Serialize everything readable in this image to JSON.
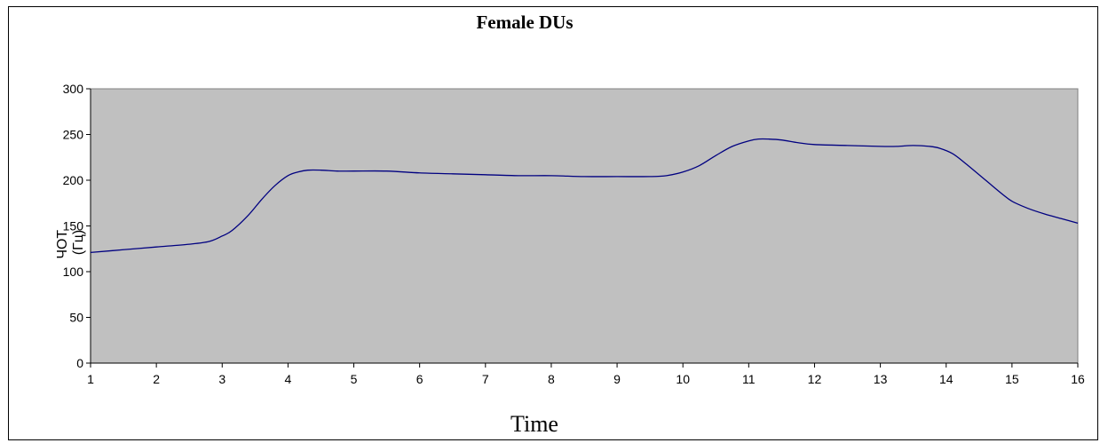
{
  "chart_data": {
    "type": "line",
    "title": "Female DUs",
    "xlabel": "Time",
    "ylabel_lines": [
      "ЧОТ",
      "(Гц)"
    ],
    "xlim": [
      1,
      16
    ],
    "ylim": [
      0,
      300
    ],
    "x_ticks": [
      1,
      2,
      3,
      4,
      5,
      6,
      7,
      8,
      9,
      10,
      11,
      12,
      13,
      14,
      15,
      16
    ],
    "y_ticks": [
      0,
      50,
      100,
      150,
      200,
      250,
      300
    ],
    "grid": false,
    "plot_background": "#c0c0c0",
    "series": [
      {
        "color": "#000080",
        "x": [
          1,
          1.5,
          2,
          2.5,
          2.8,
          3,
          3.15,
          3.4,
          3.6,
          3.8,
          4,
          4.15,
          4.3,
          4.5,
          4.75,
          5,
          5.5,
          6,
          6.5,
          7,
          7.5,
          8,
          8.5,
          9,
          9.5,
          9.75,
          10,
          10.25,
          10.5,
          10.75,
          11,
          11.15,
          11.3,
          11.5,
          11.75,
          12,
          12.5,
          13,
          13.25,
          13.5,
          13.75,
          13.9,
          14.1,
          14.3,
          14.6,
          14.85,
          15,
          15.25,
          15.5,
          15.75,
          16
        ],
        "y": [
          121,
          124,
          127,
          130,
          133,
          139,
          145,
          162,
          179,
          194,
          205,
          209,
          211,
          211,
          210,
          210,
          210,
          208,
          207,
          206,
          205,
          205,
          204,
          204,
          204,
          205,
          209,
          216,
          227,
          237,
          243,
          245,
          245,
          244,
          241,
          239,
          238,
          237,
          237,
          238,
          237,
          235,
          229,
          218,
          200,
          185,
          177,
          169,
          163,
          158,
          153
        ]
      }
    ]
  }
}
